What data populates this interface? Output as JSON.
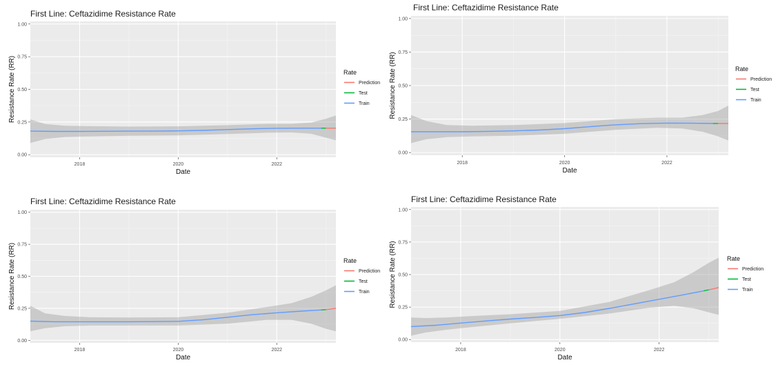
{
  "chart_data": [
    {
      "type": "line",
      "title": "First Line: Ceftazidime Resistance Rate",
      "xlabel": "Date",
      "ylabel": "Resistance Rate (RR)",
      "xlim": [
        2017.0,
        2023.2
      ],
      "ylim": [
        -0.02,
        1.02
      ],
      "x_ticks": [
        "2018",
        "2020",
        "2022"
      ],
      "y_ticks": [
        "0.00",
        "0.25",
        "0.50",
        "0.75",
        "1.00"
      ],
      "grid": true,
      "legend": {
        "title": "Rate",
        "position": "right",
        "entries": [
          "Prediction",
          "Test",
          "Train"
        ]
      },
      "series": [
        {
          "name": "Train",
          "color": "#619CFF",
          "x": [
            2017.0,
            2017.5,
            2018.0,
            2018.5,
            2019.0,
            2019.5,
            2020.0,
            2020.5,
            2021.0,
            2021.5,
            2022.0,
            2022.5,
            2022.9
          ],
          "y": [
            0.18,
            0.178,
            0.178,
            0.179,
            0.18,
            0.18,
            0.182,
            0.186,
            0.192,
            0.198,
            0.202,
            0.203,
            0.203
          ]
        },
        {
          "name": "Test",
          "color": "#00BA38",
          "x": [
            2022.9,
            2023.0
          ],
          "y": [
            0.203,
            0.203
          ]
        },
        {
          "name": "Prediction",
          "color": "#F8766D",
          "x": [
            2023.0,
            2023.2
          ],
          "y": [
            0.203,
            0.203
          ]
        }
      ],
      "ribbon": {
        "x": [
          2017.0,
          2017.3,
          2017.7,
          2018.2,
          2019.0,
          2020.0,
          2021.0,
          2021.8,
          2022.3,
          2022.7,
          2023.0,
          2023.2
        ],
        "lower": [
          0.09,
          0.12,
          0.135,
          0.14,
          0.145,
          0.148,
          0.158,
          0.168,
          0.17,
          0.16,
          0.13,
          0.11
        ],
        "upper": [
          0.27,
          0.235,
          0.222,
          0.218,
          0.215,
          0.217,
          0.226,
          0.236,
          0.236,
          0.246,
          0.275,
          0.3
        ]
      }
    },
    {
      "type": "line",
      "title": "First Line: Ceftazidime Resistance Rate",
      "xlabel": "Date",
      "ylabel": "Resistance Rate (RR)",
      "xlim": [
        2017.0,
        2023.2
      ],
      "ylim": [
        -0.02,
        1.02
      ],
      "x_ticks": [
        "2018",
        "2020",
        "2022"
      ],
      "y_ticks": [
        "0.00",
        "0.25",
        "0.50",
        "0.75",
        "1.00"
      ],
      "grid": true,
      "legend": {
        "title": "Rate",
        "position": "right",
        "entries": [
          "Prediction",
          "Test",
          "Train"
        ]
      },
      "series": [
        {
          "name": "Train",
          "color": "#619CFF",
          "x": [
            2017.0,
            2017.5,
            2018.0,
            2018.5,
            2019.0,
            2019.5,
            2020.0,
            2020.5,
            2021.0,
            2021.5,
            2022.0,
            2022.5,
            2022.9
          ],
          "y": [
            0.155,
            0.155,
            0.155,
            0.158,
            0.162,
            0.168,
            0.178,
            0.193,
            0.207,
            0.216,
            0.22,
            0.219,
            0.217
          ]
        },
        {
          "name": "Test",
          "color": "#00BA38",
          "x": [
            2022.9,
            2023.0
          ],
          "y": [
            0.217,
            0.217
          ]
        },
        {
          "name": "Prediction",
          "color": "#F8766D",
          "x": [
            2023.0,
            2023.2
          ],
          "y": [
            0.217,
            0.217
          ]
        }
      ],
      "ribbon": {
        "x": [
          2017.0,
          2017.3,
          2017.7,
          2018.2,
          2019.0,
          2020.0,
          2021.0,
          2021.8,
          2022.3,
          2022.7,
          2023.0,
          2023.2
        ],
        "lower": [
          0.07,
          0.1,
          0.115,
          0.12,
          0.125,
          0.14,
          0.17,
          0.185,
          0.18,
          0.155,
          0.12,
          0.09
        ],
        "upper": [
          0.28,
          0.235,
          0.205,
          0.2,
          0.205,
          0.22,
          0.25,
          0.26,
          0.26,
          0.28,
          0.31,
          0.35
        ]
      }
    },
    {
      "type": "line",
      "title": "First Line: Ceftazidime Resistance Rate",
      "xlabel": "Date",
      "ylabel": "Resistance Rate (RR)",
      "xlim": [
        2017.0,
        2023.2
      ],
      "ylim": [
        -0.02,
        1.02
      ],
      "x_ticks": [
        "2018",
        "2020",
        "2022"
      ],
      "y_ticks": [
        "0.00",
        "0.25",
        "0.50",
        "0.75",
        "1.00"
      ],
      "grid": true,
      "legend": {
        "title": "Rate",
        "position": "right",
        "entries": [
          "Prediction",
          "Test",
          "Train"
        ]
      },
      "series": [
        {
          "name": "Train",
          "color": "#619CFF",
          "x": [
            2017.0,
            2017.5,
            2018.0,
            2018.5,
            2019.0,
            2019.5,
            2020.0,
            2020.5,
            2021.0,
            2021.5,
            2022.0,
            2022.5,
            2022.9
          ],
          "y": [
            0.15,
            0.145,
            0.145,
            0.145,
            0.145,
            0.146,
            0.148,
            0.16,
            0.18,
            0.2,
            0.215,
            0.228,
            0.237
          ]
        },
        {
          "name": "Test",
          "color": "#00BA38",
          "x": [
            2022.9,
            2023.0
          ],
          "y": [
            0.237,
            0.24
          ]
        },
        {
          "name": "Prediction",
          "color": "#F8766D",
          "x": [
            2023.0,
            2023.2
          ],
          "y": [
            0.24,
            0.25
          ]
        }
      ],
      "ribbon": {
        "x": [
          2017.0,
          2017.3,
          2017.7,
          2018.2,
          2019.0,
          2020.0,
          2021.0,
          2021.8,
          2022.3,
          2022.7,
          2023.0,
          2023.2
        ],
        "lower": [
          0.07,
          0.095,
          0.11,
          0.115,
          0.115,
          0.115,
          0.13,
          0.16,
          0.16,
          0.13,
          0.09,
          0.07
        ],
        "upper": [
          0.27,
          0.21,
          0.19,
          0.18,
          0.178,
          0.18,
          0.215,
          0.26,
          0.29,
          0.34,
          0.39,
          0.43
        ]
      }
    },
    {
      "type": "line",
      "title": "First Line: Ceftazidime Resistance Rate",
      "xlabel": "Date",
      "ylabel": "Resistance Rate (RR)",
      "xlim": [
        2017.0,
        2023.2
      ],
      "ylim": [
        -0.02,
        1.02
      ],
      "x_ticks": [
        "2018",
        "2020",
        "2022"
      ],
      "y_ticks": [
        "0.00",
        "0.25",
        "0.50",
        "0.75",
        "1.00"
      ],
      "grid": true,
      "legend": {
        "title": "Rate",
        "position": "right",
        "entries": [
          "Prediction",
          "Test",
          "Train"
        ]
      },
      "series": [
        {
          "name": "Train",
          "color": "#619CFF",
          "x": [
            2017.0,
            2017.5,
            2018.0,
            2018.5,
            2019.0,
            2019.5,
            2020.0,
            2020.5,
            2021.0,
            2021.5,
            2022.0,
            2022.5,
            2022.9
          ],
          "y": [
            0.1,
            0.11,
            0.127,
            0.143,
            0.158,
            0.17,
            0.185,
            0.208,
            0.24,
            0.275,
            0.31,
            0.345,
            0.375
          ]
        },
        {
          "name": "Test",
          "color": "#00BA38",
          "x": [
            2022.9,
            2023.0
          ],
          "y": [
            0.375,
            0.382
          ]
        },
        {
          "name": "Prediction",
          "color": "#F8766D",
          "x": [
            2023.0,
            2023.2
          ],
          "y": [
            0.382,
            0.4
          ]
        }
      ],
      "ribbon": {
        "x": [
          2017.0,
          2017.3,
          2017.7,
          2018.2,
          2019.0,
          2020.0,
          2021.0,
          2021.8,
          2022.3,
          2022.7,
          2023.0,
          2023.2
        ],
        "lower": [
          0.03,
          0.055,
          0.075,
          0.095,
          0.125,
          0.16,
          0.2,
          0.245,
          0.26,
          0.24,
          0.21,
          0.19
        ],
        "upper": [
          0.17,
          0.165,
          0.17,
          0.18,
          0.195,
          0.22,
          0.29,
          0.38,
          0.44,
          0.52,
          0.59,
          0.63
        ]
      }
    }
  ]
}
